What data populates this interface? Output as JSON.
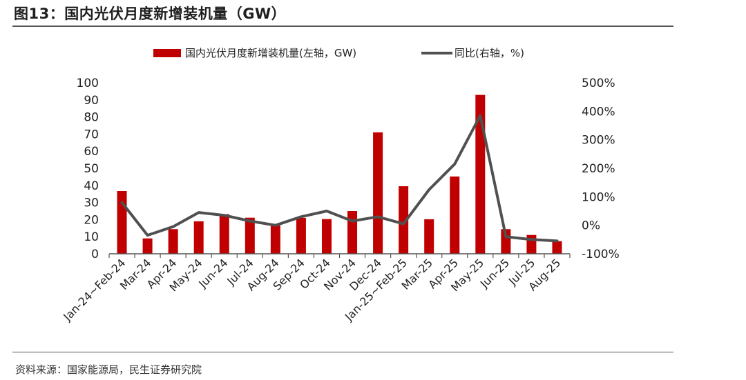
{
  "figure_title": "图13：国内光伏月度新增装机量（GW）",
  "source": "资料来源：国家能源局，民生证券研究院",
  "colors": {
    "bar": "#C00000",
    "line": "#505050",
    "axis": "#555555",
    "text": "#222222"
  },
  "chart_data": {
    "type": "bar+line",
    "title": "图13：国内光伏月度新增装机量（GW）",
    "categories": [
      "Jan-24~Feb-24",
      "Mar-24",
      "Apr-24",
      "May-24",
      "Jun-24",
      "Jul-24",
      "Aug-24",
      "Sep-24",
      "Oct-24",
      "Nov-24",
      "Dec-24",
      "Jan-25~Feb-25",
      "Mar-25",
      "Apr-25",
      "May-25",
      "Jun-25",
      "Jul-25",
      "Aug-25"
    ],
    "series": [
      {
        "name": "国内光伏月度新增装机量(左轴，GW)",
        "kind": "bar",
        "axis": "left",
        "values": [
          36.7,
          9.0,
          14.4,
          19.0,
          23.2,
          21.1,
          16.6,
          21.0,
          20.3,
          25.0,
          71.0,
          39.5,
          20.2,
          45.2,
          92.9,
          14.4,
          11.0,
          7.4
        ]
      },
      {
        "name": "同比(右轴，%)",
        "kind": "line",
        "axis": "right",
        "values": [
          80,
          -35,
          -5,
          45,
          35,
          15,
          0,
          30,
          50,
          15,
          30,
          5,
          125,
          215,
          385,
          -40,
          -50,
          -55
        ]
      }
    ],
    "left_axis": {
      "min": 0,
      "max": 100,
      "step": 10,
      "ticks": [
        "0",
        "10",
        "20",
        "30",
        "40",
        "50",
        "60",
        "70",
        "80",
        "90",
        "100"
      ]
    },
    "right_axis": {
      "min": -100,
      "max": 500,
      "step": 100,
      "ticks": [
        "-100%",
        "0%",
        "100%",
        "200%",
        "300%",
        "400%",
        "500%"
      ]
    },
    "legend": {
      "position": "top",
      "entries": [
        "国内光伏月度新增装机量(左轴，GW)",
        "同比(右轴，%)"
      ]
    }
  }
}
